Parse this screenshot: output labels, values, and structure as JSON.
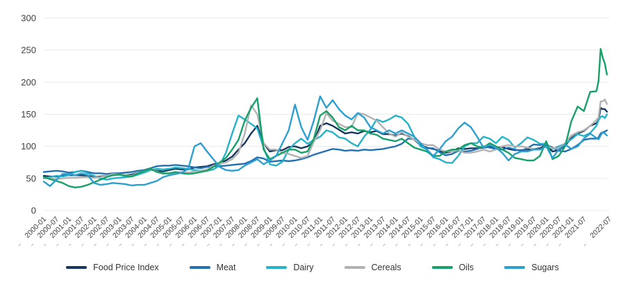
{
  "chart_data": {
    "type": "line",
    "title": "",
    "xlabel": "",
    "ylabel": "",
    "ylim": [
      0,
      300
    ],
    "y_ticks": [
      0,
      50,
      100,
      150,
      200,
      250,
      300
    ],
    "grid": "horizontal",
    "legend_position": "bottom",
    "x_tick_labels": [
      "2000-01",
      "2000-07",
      "2001-01",
      "2001-07",
      "2002-01",
      "2002-07",
      "2003-01",
      "2003-07",
      "2004-01",
      "2004-07",
      "2005-01",
      "2005-07",
      "2006-01",
      "2006-07",
      "2007-01",
      "2007-07",
      "2008-01",
      "2008-07",
      "2009-01",
      "2009-07",
      "2010-01",
      "2010-07",
      "2011-01",
      "2011-07",
      "2012-01",
      "2012-07",
      "2013-01",
      "2013-07",
      "2014-01",
      "2014-07",
      "2015-01",
      "2015-07",
      "2016-01",
      "2016-07",
      "2017-01",
      "2017-07",
      "2018-01",
      "2018-07",
      "2019-01",
      "2019-07",
      "2020-01",
      "2020-07",
      "2021-01",
      "2021-07",
      "2022-07"
    ],
    "dates": [
      "2000-01",
      "2000-04",
      "2000-07",
      "2000-10",
      "2001-01",
      "2001-04",
      "2001-07",
      "2001-10",
      "2002-01",
      "2002-04",
      "2002-07",
      "2002-10",
      "2003-01",
      "2003-04",
      "2003-07",
      "2003-10",
      "2004-01",
      "2004-04",
      "2004-07",
      "2004-10",
      "2005-01",
      "2005-04",
      "2005-07",
      "2005-10",
      "2006-01",
      "2006-04",
      "2006-07",
      "2006-10",
      "2007-01",
      "2007-04",
      "2007-07",
      "2007-10",
      "2008-01",
      "2008-04",
      "2008-07",
      "2008-10",
      "2009-01",
      "2009-04",
      "2009-07",
      "2009-10",
      "2010-01",
      "2010-04",
      "2010-07",
      "2010-10",
      "2011-01",
      "2011-04",
      "2011-07",
      "2011-10",
      "2012-01",
      "2012-04",
      "2012-07",
      "2012-10",
      "2013-01",
      "2013-04",
      "2013-07",
      "2013-10",
      "2014-01",
      "2014-04",
      "2014-07",
      "2014-10",
      "2015-01",
      "2015-04",
      "2015-07",
      "2015-10",
      "2016-01",
      "2016-04",
      "2016-07",
      "2016-10",
      "2017-01",
      "2017-04",
      "2017-07",
      "2017-10",
      "2018-01",
      "2018-04",
      "2018-07",
      "2018-10",
      "2019-01",
      "2019-04",
      "2019-07",
      "2019-10",
      "2020-01",
      "2020-04",
      "2020-07",
      "2020-10",
      "2021-01",
      "2021-04",
      "2021-07",
      "2021-10",
      "2022-01",
      "2022-02",
      "2022-03",
      "2022-04",
      "2022-05",
      "2022-06"
    ],
    "series": [
      {
        "name": "Food Price Index",
        "color": "#17375e",
        "values": [
          54,
          53,
          53,
          54,
          55,
          55,
          55,
          54,
          52,
          53,
          54,
          55,
          56,
          55,
          56,
          59,
          61,
          64,
          62,
          61,
          63,
          65,
          64,
          64,
          67,
          68,
          69,
          72,
          74,
          78,
          84,
          95,
          105,
          120,
          132,
          105,
          92,
          94,
          94,
          99,
          100,
          97,
          100,
          107,
          132,
          136,
          132,
          126,
          120,
          122,
          120,
          124,
          122,
          124,
          119,
          119,
          117,
          120,
          116,
          110,
          102,
          98,
          96,
          93,
          90,
          92,
          97,
          96,
          97,
          97,
          98,
          99,
          98,
          99,
          96,
          94,
          94,
          95,
          96,
          97,
          102,
          92,
          94,
          101,
          113,
          120,
          124,
          132,
          136,
          141,
          160,
          158,
          158,
          154
        ]
      },
      {
        "name": "Meat",
        "color": "#2271b3",
        "values": [
          60,
          61,
          62,
          61,
          59,
          60,
          62,
          60,
          58,
          58,
          57,
          58,
          58,
          59,
          60,
          62,
          63,
          66,
          69,
          70,
          70,
          71,
          70,
          69,
          67,
          66,
          68,
          69,
          69,
          70,
          71,
          72,
          73,
          77,
          83,
          81,
          76,
          77,
          78,
          77,
          78,
          80,
          83,
          87,
          90,
          93,
          96,
          95,
          93,
          94,
          93,
          95,
          94,
          95,
          96,
          98,
          100,
          104,
          112,
          111,
          101,
          97,
          97,
          91,
          86,
          88,
          93,
          92,
          93,
          96,
          100,
          98,
          96,
          95,
          98,
          95,
          93,
          97,
          103,
          102,
          103,
          98,
          93,
          92,
          96,
          102,
          110,
          112,
          112,
          114,
          120,
          122,
          123,
          125
        ]
      },
      {
        "name": "Dairy",
        "color": "#24b3c9",
        "values": [
          50,
          52,
          54,
          53,
          55,
          60,
          62,
          58,
          54,
          50,
          48,
          50,
          51,
          52,
          53,
          56,
          59,
          63,
          65,
          64,
          65,
          67,
          66,
          65,
          63,
          62,
          62,
          64,
          70,
          90,
          120,
          148,
          142,
          135,
          128,
          98,
          72,
          70,
          76,
          95,
          105,
          112,
          104,
          110,
          115,
          125,
          122,
          114,
          112,
          105,
          100,
          115,
          126,
          142,
          138,
          142,
          148,
          145,
          135,
          115,
          100,
          95,
          83,
          80,
          75,
          74,
          85,
          100,
          105,
          105,
          115,
          112,
          105,
          115,
          110,
          98,
          105,
          114,
          110,
          104,
          104,
          96,
          100,
          104,
          111,
          119,
          116,
          121,
          132,
          141,
          146,
          147,
          144,
          150
        ]
      },
      {
        "name": "Cereals",
        "color": "#b2b2b2",
        "values": [
          51,
          50,
          49,
          50,
          51,
          51,
          52,
          52,
          51,
          52,
          54,
          57,
          56,
          55,
          54,
          59,
          62,
          65,
          61,
          57,
          58,
          59,
          60,
          59,
          61,
          62,
          64,
          70,
          73,
          75,
          80,
          90,
          120,
          164,
          150,
          105,
          95,
          95,
          90,
          88,
          85,
          82,
          85,
          107,
          125,
          152,
          140,
          135,
          130,
          130,
          152,
          150,
          145,
          140,
          130,
          120,
          115,
          122,
          115,
          110,
          105,
          102,
          102,
          95,
          92,
          92,
          94,
          90,
          90,
          92,
          95,
          92,
          95,
          100,
          102,
          100,
          100,
          98,
          96,
          95,
          100,
          97,
          97,
          105,
          117,
          122,
          125,
          132,
          141,
          145,
          170,
          170,
          173,
          166
        ]
      },
      {
        "name": "Oils",
        "color": "#16a168",
        "values": [
          52,
          49,
          46,
          43,
          38,
          36,
          37,
          40,
          44,
          48,
          52,
          55,
          56,
          54,
          53,
          58,
          62,
          65,
          60,
          58,
          58,
          60,
          58,
          57,
          58,
          60,
          62,
          68,
          75,
          82,
          95,
          110,
          140,
          160,
          175,
          95,
          80,
          85,
          90,
          95,
          95,
          90,
          92,
          112,
          148,
          155,
          145,
          130,
          125,
          132,
          125,
          125,
          120,
          118,
          112,
          110,
          108,
          112,
          105,
          98,
          95,
          92,
          85,
          85,
          92,
          95,
          95,
          102,
          105,
          100,
          98,
          105,
          100,
          95,
          90,
          82,
          80,
          78,
          78,
          85,
          108,
          80,
          85,
          100,
          139,
          162,
          155,
          185,
          186,
          202,
          252,
          238,
          229,
          212
        ]
      },
      {
        "name": "Sugars",
        "color": "#2b9fd1",
        "values": [
          45,
          38,
          48,
          57,
          57,
          55,
          58,
          55,
          43,
          40,
          41,
          43,
          42,
          41,
          39,
          40,
          40,
          43,
          46,
          52,
          55,
          57,
          59,
          65,
          100,
          105,
          92,
          80,
          68,
          63,
          62,
          63,
          70,
          75,
          80,
          72,
          78,
          85,
          105,
          125,
          165,
          130,
          110,
          140,
          178,
          160,
          172,
          158,
          148,
          142,
          152,
          145,
          130,
          125,
          120,
          125,
          120,
          125,
          120,
          115,
          105,
          95,
          85,
          95,
          108,
          115,
          128,
          137,
          130,
          115,
          98,
          102,
          98,
          90,
          78,
          88,
          92,
          92,
          95,
          95,
          100,
          82,
          95,
          103,
          96,
          100,
          112,
          120,
          113,
          111,
          117,
          122,
          120,
          117
        ]
      }
    ]
  }
}
